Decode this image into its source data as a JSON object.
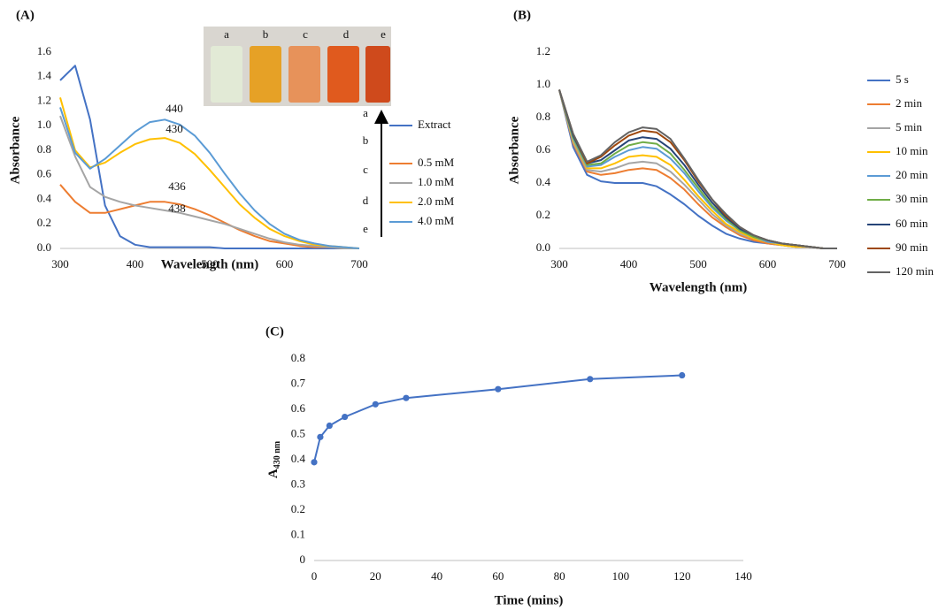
{
  "chart_data": [
    {
      "type": "line",
      "label": "(A)",
      "xlabel": "Wavelength (nm)",
      "ylabel": "Absorbance",
      "xlim": [
        300,
        700
      ],
      "xticks": [
        300,
        400,
        500,
        600,
        700
      ],
      "ylim": [
        0,
        1.6
      ],
      "yticks": [
        {
          "value": 0,
          "label": "0.0"
        },
        0.2,
        0.4,
        0.6,
        0.8,
        {
          "value": 1,
          "label": "1.0"
        },
        1.2,
        1.4,
        1.6
      ],
      "annotations": [
        "440",
        "430",
        "436",
        "438"
      ],
      "legend_letters": [
        "a",
        "b",
        "c",
        "d",
        "e"
      ],
      "inset_labels": [
        "a",
        "b",
        "c",
        "d",
        "e"
      ],
      "x": [
        300,
        320,
        340,
        360,
        380,
        400,
        420,
        440,
        460,
        480,
        500,
        520,
        540,
        560,
        580,
        600,
        620,
        640,
        660,
        680,
        700
      ],
      "series": [
        {
          "name": "Extract",
          "color": "#4472c4",
          "values": [
            1.37,
            1.49,
            1.05,
            0.35,
            0.1,
            0.03,
            0.01,
            0.01,
            0.01,
            0.01,
            0.01,
            0,
            0,
            0,
            0,
            0,
            0,
            0,
            0,
            0,
            0
          ]
        },
        {
          "name": "0.5 mM",
          "color": "#ed7d31",
          "values": [
            0.52,
            0.38,
            0.29,
            0.29,
            0.32,
            0.35,
            0.38,
            0.38,
            0.36,
            0.32,
            0.27,
            0.21,
            0.15,
            0.1,
            0.06,
            0.04,
            0.02,
            0.01,
            0.01,
            0,
            0
          ]
        },
        {
          "name": "1.0 mM",
          "color": "#a5a5a5",
          "values": [
            1.08,
            0.75,
            0.5,
            0.42,
            0.38,
            0.35,
            0.33,
            0.31,
            0.29,
            0.26,
            0.23,
            0.2,
            0.16,
            0.12,
            0.08,
            0.05,
            0.03,
            0.02,
            0.01,
            0,
            0
          ]
        },
        {
          "name": "2.0 mM",
          "color": "#ffc000",
          "values": [
            1.23,
            0.8,
            0.66,
            0.7,
            0.78,
            0.85,
            0.89,
            0.9,
            0.86,
            0.77,
            0.64,
            0.5,
            0.36,
            0.25,
            0.16,
            0.1,
            0.06,
            0.03,
            0.02,
            0.01,
            0
          ]
        },
        {
          "name": "4.0 mM",
          "color": "#5b9bd5",
          "values": [
            1.15,
            0.78,
            0.65,
            0.73,
            0.84,
            0.95,
            1.03,
            1.05,
            1.01,
            0.92,
            0.78,
            0.61,
            0.45,
            0.31,
            0.2,
            0.12,
            0.07,
            0.04,
            0.02,
            0.01,
            0
          ]
        }
      ]
    },
    {
      "type": "line",
      "label": "(B)",
      "xlabel": "Wavelength (nm)",
      "ylabel": "Absorbance",
      "xlim": [
        300,
        700
      ],
      "xticks": [
        300,
        400,
        500,
        600,
        700
      ],
      "ylim": [
        0,
        1.2
      ],
      "yticks": [
        {
          "value": 0,
          "label": "0.0"
        },
        0.2,
        0.4,
        0.6,
        0.8,
        {
          "value": 1,
          "label": "1.0"
        },
        1.2
      ],
      "x": [
        300,
        320,
        340,
        360,
        380,
        400,
        420,
        440,
        460,
        480,
        500,
        520,
        540,
        560,
        580,
        600,
        620,
        640,
        660,
        680,
        700
      ],
      "series": [
        {
          "name": "5 s",
          "color": "#4472c4",
          "values": [
            0.97,
            0.62,
            0.45,
            0.41,
            0.4,
            0.4,
            0.4,
            0.38,
            0.33,
            0.27,
            0.2,
            0.14,
            0.09,
            0.06,
            0.04,
            0.03,
            0.02,
            0.01,
            0.01,
            0,
            0
          ]
        },
        {
          "name": "2 min",
          "color": "#ed7d31",
          "values": [
            0.97,
            0.64,
            0.47,
            0.45,
            0.46,
            0.48,
            0.49,
            0.48,
            0.43,
            0.36,
            0.27,
            0.19,
            0.13,
            0.08,
            0.05,
            0.03,
            0.02,
            0.01,
            0.01,
            0,
            0
          ]
        },
        {
          "name": "5 min",
          "color": "#a5a5a5",
          "values": [
            0.97,
            0.65,
            0.48,
            0.47,
            0.49,
            0.52,
            0.53,
            0.52,
            0.47,
            0.39,
            0.3,
            0.21,
            0.14,
            0.09,
            0.06,
            0.04,
            0.02,
            0.01,
            0.01,
            0,
            0
          ]
        },
        {
          "name": "10 min",
          "color": "#ffc000",
          "values": [
            0.97,
            0.66,
            0.49,
            0.49,
            0.52,
            0.56,
            0.57,
            0.56,
            0.51,
            0.42,
            0.32,
            0.23,
            0.15,
            0.1,
            0.06,
            0.04,
            0.02,
            0.01,
            0.01,
            0,
            0
          ]
        },
        {
          "name": "20 min",
          "color": "#5b9bd5",
          "values": [
            0.97,
            0.67,
            0.5,
            0.51,
            0.56,
            0.6,
            0.62,
            0.61,
            0.55,
            0.46,
            0.35,
            0.25,
            0.17,
            0.11,
            0.07,
            0.04,
            0.03,
            0.02,
            0.01,
            0,
            0
          ]
        },
        {
          "name": "30 min",
          "color": "#70ad47",
          "values": [
            0.97,
            0.68,
            0.51,
            0.52,
            0.58,
            0.63,
            0.65,
            0.64,
            0.58,
            0.48,
            0.37,
            0.26,
            0.18,
            0.11,
            0.07,
            0.05,
            0.03,
            0.02,
            0.01,
            0,
            0
          ]
        },
        {
          "name": "60 min",
          "color": "#264478",
          "values": [
            0.97,
            0.69,
            0.52,
            0.54,
            0.6,
            0.66,
            0.68,
            0.67,
            0.61,
            0.51,
            0.39,
            0.28,
            0.19,
            0.12,
            0.08,
            0.05,
            0.03,
            0.02,
            0.01,
            0,
            0
          ]
        },
        {
          "name": "90 min",
          "color": "#9e480e",
          "values": [
            0.97,
            0.7,
            0.52,
            0.56,
            0.63,
            0.69,
            0.72,
            0.71,
            0.65,
            0.54,
            0.41,
            0.3,
            0.2,
            0.13,
            0.08,
            0.05,
            0.03,
            0.02,
            0.01,
            0,
            0
          ]
        },
        {
          "name": "120 min",
          "color": "#636363",
          "values": [
            0.97,
            0.7,
            0.53,
            0.57,
            0.65,
            0.71,
            0.74,
            0.73,
            0.67,
            0.55,
            0.42,
            0.3,
            0.21,
            0.13,
            0.08,
            0.05,
            0.03,
            0.02,
            0.01,
            0,
            0
          ]
        }
      ]
    },
    {
      "type": "line",
      "label": "(C)",
      "xlabel": "Time (mins)",
      "ylabel": "A",
      "ylabel_subscript": "430 nm",
      "markers": true,
      "xlim": [
        0,
        140
      ],
      "xticks": [
        0,
        20,
        40,
        60,
        80,
        100,
        120,
        140
      ],
      "ylim": [
        0,
        0.8
      ],
      "yticks": [
        0,
        0.1,
        0.2,
        0.3,
        0.4,
        0.5,
        0.6,
        0.7,
        0.8
      ],
      "x": [
        0,
        2,
        5,
        10,
        20,
        30,
        60,
        90,
        120
      ],
      "values": [
        0.39,
        0.49,
        0.535,
        0.57,
        0.62,
        0.645,
        0.68,
        0.72,
        0.735
      ],
      "color": "#4472c4"
    }
  ]
}
